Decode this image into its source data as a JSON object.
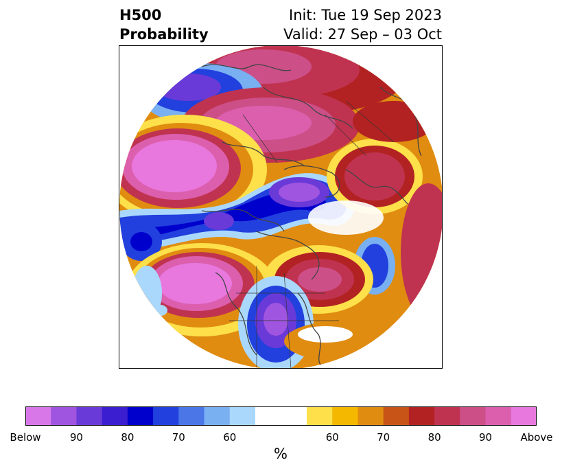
{
  "title": {
    "left_line1": "H500",
    "left_line2": "Probability",
    "init": "Init: Tue 19 Sep 2023",
    "valid": "Valid: 27 Sep – 03 Oct"
  },
  "colorbar": {
    "unit": "%",
    "tick_labels": [
      "Below",
      "90",
      "80",
      "70",
      "60",
      "60",
      "70",
      "80",
      "90",
      "Above"
    ],
    "below_colors": [
      "#d878e8",
      "#a055e0",
      "#6a3ad8",
      "#3a1ed0",
      "#0000cc",
      "#2240dd",
      "#4a76e8",
      "#78b0f2",
      "#aad8fc"
    ],
    "neutral_color": "#ffffff",
    "above_colors": [
      "#fde04a",
      "#f4b800",
      "#e08c10",
      "#c85418",
      "#b22222",
      "#c03350",
      "#cc4f88",
      "#dc5fae",
      "#e878de"
    ]
  },
  "map": {
    "projection": "polar stereographic, north pole centered",
    "features": [
      "coastlines",
      "country borders",
      "state/province borders"
    ],
    "anomalies": [
      {
        "region": "North Pacific / Aleutians",
        "sign": "above",
        "probability_max": "Above"
      },
      {
        "region": "Arctic Ocean / Greenland",
        "sign": "below",
        "probability_max": "90"
      },
      {
        "region": "Western Canada / Pacific Northwest",
        "sign": "above",
        "probability_max": "Above"
      },
      {
        "region": "Eastern Canada",
        "sign": "above",
        "probability_max": "90"
      },
      {
        "region": "Southeastern United States",
        "sign": "below",
        "probability_max": "90"
      },
      {
        "region": "Northern Europe / Scandinavia",
        "sign": "above",
        "probability_max": "90"
      },
      {
        "region": "Eastern Siberia",
        "sign": "below",
        "probability_max": "90"
      },
      {
        "region": "Western Siberia",
        "sign": "above",
        "probability_max": "90"
      }
    ]
  }
}
